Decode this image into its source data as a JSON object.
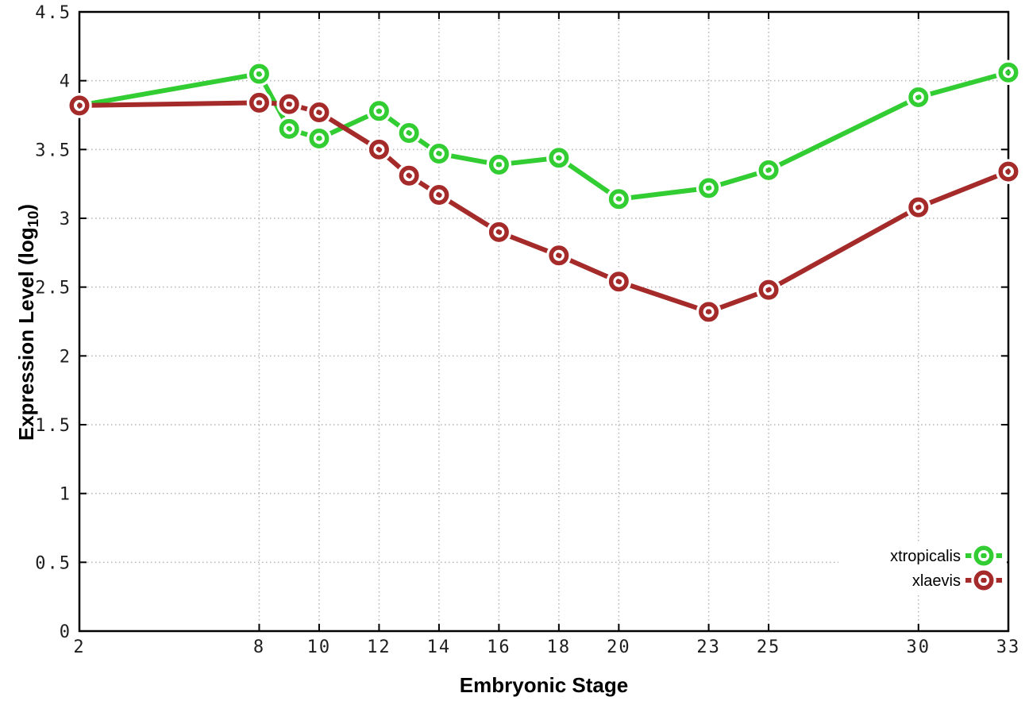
{
  "figure": {
    "background": "#ffffff",
    "x_axis_title": "Embryonic Stage",
    "y_axis_title": {
      "prefix": "Expression Level (log",
      "subscript": "10",
      "suffix": ")"
    }
  },
  "chart_data": {
    "type": "line",
    "title": "",
    "xlabel": "Embryonic Stage",
    "ylabel": "Expression Level (log10)",
    "x": [
      2,
      8,
      9,
      10,
      12,
      13,
      14,
      16,
      18,
      20,
      23,
      25,
      30,
      33
    ],
    "series": [
      {
        "name": "xtropicalis",
        "color": "#32cd32",
        "values": [
          3.82,
          4.05,
          3.65,
          3.58,
          3.78,
          3.62,
          3.47,
          3.39,
          3.44,
          3.14,
          3.22,
          3.35,
          3.88,
          4.06
        ]
      },
      {
        "name": "xlaevis",
        "color": "#a52a2a",
        "values": [
          3.82,
          3.84,
          3.83,
          3.77,
          3.5,
          3.31,
          3.17,
          2.9,
          2.73,
          2.54,
          2.32,
          2.48,
          3.08,
          3.34
        ]
      }
    ],
    "xlim": [
      2,
      33
    ],
    "ylim": [
      0,
      4.5
    ],
    "xticks": [
      2,
      8,
      10,
      12,
      14,
      16,
      18,
      20,
      23,
      25,
      30,
      33
    ],
    "xtick_labels": [
      "2",
      "8",
      "10",
      "12",
      "14",
      "16",
      "18",
      "20",
      "23",
      "25",
      "30",
      "33"
    ],
    "yticks": [
      0,
      0.5,
      1,
      1.5,
      2,
      2.5,
      3,
      3.5,
      4,
      4.5
    ],
    "ytick_labels": [
      "0",
      "0.5",
      "1",
      "1.5",
      "2",
      "2.5",
      "3",
      "3.5",
      "4",
      "4.5"
    ],
    "grid": true,
    "grid_color": "#b4b4b4",
    "border_color": "#000000",
    "tick_label_color": "#1f1f1f",
    "legend_position": "bottom-right",
    "marker": "open-circle"
  }
}
